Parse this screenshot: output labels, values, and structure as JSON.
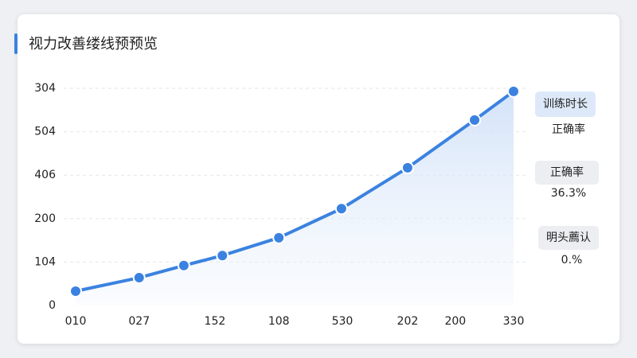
{
  "chart_data": {
    "type": "line",
    "title": "视力改善缕线预预览",
    "x": [
      0,
      14.5,
      24.7,
      33.5,
      46.4,
      60.7,
      75.8,
      91.1,
      100
    ],
    "values": [
      33,
      64,
      92,
      115,
      156,
      223,
      317,
      427,
      493
    ],
    "color": "#3b82e0",
    "xlim": [
      0,
      100
    ],
    "xticks": [
      {
        "value": 0,
        "label": "010"
      },
      {
        "value": 14.5,
        "label": "027"
      },
      {
        "value": 31.8,
        "label": "152"
      },
      {
        "value": 46.4,
        "label": "108"
      },
      {
        "value": 60.9,
        "label": "530"
      },
      {
        "value": 75.8,
        "label": "202"
      },
      {
        "value": 86.7,
        "label": "200"
      },
      {
        "value": 100,
        "label": "330"
      }
    ],
    "ylim": [
      0,
      500
    ],
    "yticks": [
      0,
      {
        "value": 100,
        "label": "104"
      },
      200,
      {
        "value": 300,
        "label": "406"
      },
      {
        "value": 400,
        "label": "504"
      },
      {
        "value": 500,
        "label": "304"
      }
    ],
    "grid": true
  },
  "panel": [
    {
      "label": "训练时长",
      "value": "正确率"
    },
    {
      "label": "正确率",
      "value": "36.3%"
    },
    {
      "label": "明头薦认",
      "value": "0.%"
    }
  ]
}
